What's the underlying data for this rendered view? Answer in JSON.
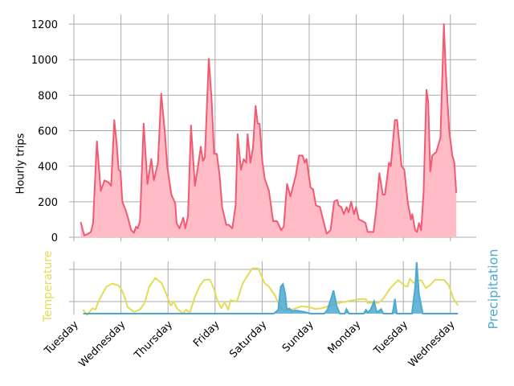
{
  "chart_data": [
    {
      "type": "area",
      "title": "",
      "xlabel": "",
      "ylabel": "Hourly trips",
      "ylim": [
        0,
        1250
      ],
      "yticks": [
        0,
        200,
        400,
        600,
        800,
        1000,
        1200
      ],
      "x_unit": "hours since Tuesday 00:00",
      "grid": true,
      "color_line": "#f25a72",
      "color_fill": "#ffbcc6",
      "series": [
        {
          "name": "Hourly trips",
          "points": [
            [
              3.5,
              85
            ],
            [
              5.3,
              10
            ],
            [
              7.4,
              20
            ],
            [
              8.7,
              30
            ],
            [
              9.8,
              80
            ],
            [
              11.7,
              540
            ],
            [
              13.7,
              260
            ],
            [
              15.6,
              320
            ],
            [
              17.6,
              310
            ],
            [
              19.0,
              290
            ],
            [
              20.6,
              660
            ],
            [
              21.8,
              530
            ],
            [
              22.8,
              380
            ],
            [
              23.8,
              370
            ],
            [
              24.7,
              200
            ],
            [
              26.5,
              150
            ],
            [
              27.8,
              100
            ],
            [
              29.2,
              40
            ],
            [
              30.6,
              25
            ],
            [
              31.7,
              60
            ],
            [
              32.6,
              50
            ],
            [
              33.7,
              90
            ],
            [
              35.6,
              640
            ],
            [
              37.5,
              300
            ],
            [
              39.5,
              440
            ],
            [
              40.8,
              320
            ],
            [
              42.9,
              420
            ],
            [
              44.5,
              810
            ],
            [
              46.3,
              600
            ],
            [
              47.6,
              400
            ],
            [
              49.7,
              240
            ],
            [
              51.7,
              190
            ],
            [
              52.4,
              80
            ],
            [
              53.8,
              50
            ],
            [
              55.8,
              110
            ],
            [
              56.8,
              50
            ],
            [
              58.2,
              120
            ],
            [
              59.7,
              630
            ],
            [
              61.7,
              290
            ],
            [
              63.3,
              400
            ],
            [
              64.7,
              510
            ],
            [
              65.8,
              430
            ],
            [
              66.8,
              450
            ],
            [
              68.8,
              1005
            ],
            [
              70.2,
              780
            ],
            [
              71.5,
              470
            ],
            [
              72.9,
              470
            ],
            [
              74.3,
              350
            ],
            [
              75.6,
              170
            ],
            [
              77.7,
              70
            ],
            [
              79.0,
              70
            ],
            [
              80.8,
              50
            ],
            [
              82.5,
              180
            ],
            [
              83.5,
              580
            ],
            [
              85.2,
              380
            ],
            [
              86.6,
              440
            ],
            [
              87.9,
              420
            ],
            [
              88.6,
              580
            ],
            [
              90.0,
              420
            ],
            [
              91.3,
              500
            ],
            [
              92.7,
              740
            ],
            [
              93.7,
              640
            ],
            [
              94.7,
              640
            ],
            [
              96.1,
              430
            ],
            [
              97.3,
              330
            ],
            [
              99.5,
              260
            ],
            [
              101.6,
              90
            ],
            [
              103.6,
              90
            ],
            [
              105.7,
              40
            ],
            [
              107.0,
              60
            ],
            [
              108.7,
              300
            ],
            [
              110.4,
              230
            ],
            [
              113.2,
              350
            ],
            [
              114.8,
              460
            ],
            [
              116.6,
              460
            ],
            [
              117.7,
              420
            ],
            [
              118.6,
              440
            ],
            [
              120.7,
              280
            ],
            [
              122.0,
              270
            ],
            [
              123.4,
              180
            ],
            [
              125.5,
              170
            ],
            [
              128.9,
              20
            ],
            [
              130.9,
              40
            ],
            [
              132.7,
              200
            ],
            [
              134.3,
              210
            ],
            [
              135.0,
              180
            ],
            [
              136.4,
              170
            ],
            [
              137.7,
              130
            ],
            [
              139.1,
              170
            ],
            [
              140.1,
              140
            ],
            [
              141.4,
              200
            ],
            [
              142.8,
              130
            ],
            [
              143.9,
              170
            ],
            [
              145.3,
              100
            ],
            [
              147.3,
              90
            ],
            [
              148.7,
              80
            ],
            [
              149.8,
              30
            ],
            [
              151.4,
              30
            ],
            [
              152.8,
              30
            ],
            [
              154.1,
              150
            ],
            [
              155.8,
              360
            ],
            [
              157.5,
              240
            ],
            [
              158.6,
              240
            ],
            [
              160.7,
              420
            ],
            [
              161.6,
              400
            ],
            [
              163.7,
              660
            ],
            [
              164.8,
              660
            ],
            [
              167.1,
              400
            ],
            [
              168.5,
              380
            ],
            [
              170.2,
              200
            ],
            [
              171.9,
              100
            ],
            [
              172.6,
              130
            ],
            [
              174.0,
              40
            ],
            [
              175.0,
              30
            ],
            [
              176.0,
              80
            ],
            [
              177.1,
              40
            ],
            [
              178.3,
              250
            ],
            [
              179.8,
              830
            ],
            [
              180.7,
              760
            ],
            [
              181.7,
              370
            ],
            [
              182.8,
              460
            ],
            [
              184.8,
              480
            ],
            [
              186.9,
              560
            ],
            [
              188.7,
              1200
            ],
            [
              189.6,
              950
            ],
            [
              191.4,
              600
            ],
            [
              193.0,
              460
            ],
            [
              194.0,
              420
            ],
            [
              195.0,
              250
            ]
          ]
        }
      ]
    },
    {
      "type": "line+area",
      "xlabel": "",
      "ylabel_left": "Temperature",
      "ylabel_right": "Precipitation",
      "x_unit": "hours since Tuesday 00:00",
      "xticks": [
        0,
        24,
        48,
        72,
        96,
        120,
        144,
        168,
        192
      ],
      "xtick_labels": [
        "Tuesday",
        "Wednesday",
        "Thursday",
        "Friday",
        "Saturday",
        "Sunday",
        "Monday",
        "Tuesday",
        "Wednesday"
      ],
      "temperature_gridlines": [
        10,
        20
      ],
      "temperature_color": "#e3dc55",
      "precipitation_color": "#4ea9d1",
      "grid": true,
      "series": [
        {
          "name": "Temperature",
          "axis": "left",
          "points": [
            [
              4.7,
              7.5
            ],
            [
              6.7,
              5.8
            ],
            [
              9.4,
              7.9
            ],
            [
              11.0,
              7.5
            ],
            [
              12.5,
              10
            ],
            [
              16.5,
              14.6
            ],
            [
              19.6,
              15.6
            ],
            [
              22.7,
              15
            ],
            [
              24.3,
              13.8
            ],
            [
              25.9,
              11.3
            ],
            [
              27.4,
              8.3
            ],
            [
              30.6,
              6.8
            ],
            [
              33.7,
              7.5
            ],
            [
              36.1,
              9.6
            ],
            [
              38.4,
              14.6
            ],
            [
              41.5,
              17.3
            ],
            [
              44.7,
              15.8
            ],
            [
              47.0,
              12.5
            ],
            [
              49.4,
              8.75
            ],
            [
              50.9,
              10
            ],
            [
              52.5,
              7.9
            ],
            [
              55.6,
              6.3
            ],
            [
              57.2,
              7.5
            ],
            [
              59.1,
              6.5
            ],
            [
              61.9,
              11.7
            ],
            [
              64.3,
              15
            ],
            [
              66.6,
              16.8
            ],
            [
              69.4,
              16.8
            ],
            [
              71.3,
              14.2
            ],
            [
              72.9,
              10.8
            ],
            [
              75.2,
              7.9
            ],
            [
              76.8,
              9.8
            ],
            [
              78.7,
              7.5
            ],
            [
              79.9,
              10.4
            ],
            [
              83.1,
              10
            ],
            [
              86.2,
              15.8
            ],
            [
              90.9,
              20.3
            ],
            [
              94.0,
              20.3
            ],
            [
              97.2,
              15.8
            ],
            [
              99.5,
              14.6
            ],
            [
              102.7,
              11.7
            ],
            [
              105.0,
              8.3
            ],
            [
              107.4,
              7.1
            ],
            [
              112.1,
              7.7
            ],
            [
              116.0,
              8.5
            ],
            [
              119.9,
              8.3
            ],
            [
              123.0,
              7.7
            ],
            [
              126.2,
              7.9
            ],
            [
              130.9,
              8.8
            ],
            [
              135.6,
              9.6
            ],
            [
              140.3,
              10.2
            ],
            [
              145.0,
              10.7
            ],
            [
              148.9,
              10.8
            ],
            [
              149.7,
              9.6
            ],
            [
              155.2,
              9.6
            ],
            [
              157.5,
              10.7
            ],
            [
              161.4,
              14.2
            ],
            [
              165.4,
              16.7
            ],
            [
              168.5,
              15
            ],
            [
              170.1,
              14.6
            ],
            [
              171.3,
              17.1
            ],
            [
              173.2,
              15.8
            ],
            [
              177.1,
              16.7
            ],
            [
              179.5,
              14.2
            ],
            [
              181.8,
              15.2
            ],
            [
              184.2,
              16.8
            ],
            [
              188.9,
              16.7
            ],
            [
              191.2,
              15
            ],
            [
              193.6,
              10.8
            ],
            [
              195.9,
              8.8
            ]
          ]
        },
        {
          "name": "Precipitation",
          "axis": "right",
          "points": [
            [
              4.7,
              0
            ],
            [
              101.9,
              0
            ],
            [
              102.7,
              0.1
            ],
            [
              104.2,
              0.3
            ],
            [
              105.5,
              2.1
            ],
            [
              106.6,
              2.3
            ],
            [
              107.7,
              1.6
            ],
            [
              108.6,
              0.3
            ],
            [
              109.7,
              0.4
            ],
            [
              111.3,
              0.2
            ],
            [
              112.9,
              0.25
            ],
            [
              115.2,
              0.2
            ],
            [
              118.3,
              0.1
            ],
            [
              120.7,
              0
            ],
            [
              127.7,
              0
            ],
            [
              129.3,
              0.3
            ],
            [
              131.2,
              1.2
            ],
            [
              132.4,
              1.8
            ],
            [
              134.0,
              0.6
            ],
            [
              135.6,
              0
            ],
            [
              138.0,
              0
            ],
            [
              139.0,
              0.35
            ],
            [
              140.3,
              0
            ],
            [
              147.8,
              0
            ],
            [
              148.9,
              0.3
            ],
            [
              150.0,
              0.1
            ],
            [
              151.3,
              0.3
            ],
            [
              153.1,
              0.95
            ],
            [
              154.4,
              0.1
            ],
            [
              156.7,
              0.35
            ],
            [
              157.8,
              0
            ],
            [
              162.5,
              0
            ],
            [
              163.7,
              1.15
            ],
            [
              164.7,
              0
            ],
            [
              172.4,
              0
            ],
            [
              174.0,
              2.0
            ],
            [
              174.8,
              4.0
            ],
            [
              176.0,
              1.5
            ],
            [
              177.9,
              0
            ],
            [
              195.9,
              0
            ]
          ]
        }
      ]
    }
  ]
}
